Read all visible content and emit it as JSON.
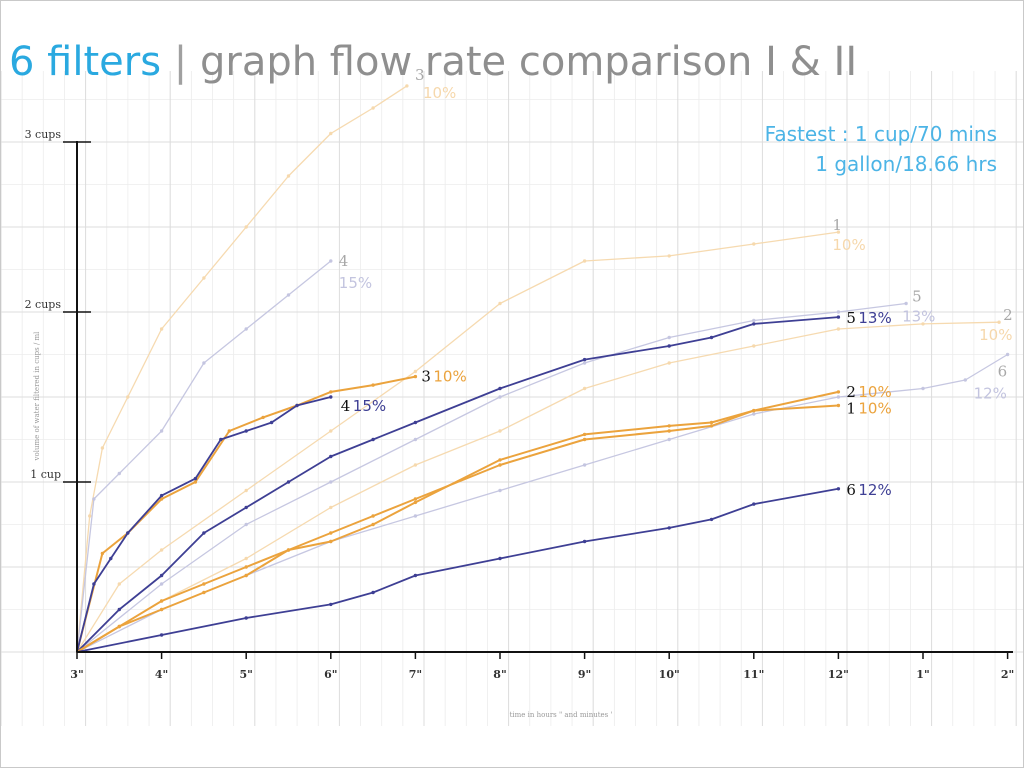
{
  "slide": {
    "title_accent": "6 filters",
    "title_separator": "|",
    "title_rest": "graph flow rate comparison I & II",
    "note_line1": "Fastest : 1 cup/70 mins",
    "note_line2": "1 gallon/18.66 hrs",
    "colors": {
      "accent": "#2aa9e0",
      "title_gray": "#8f8f8f",
      "note_blue": "#4cb4e6",
      "navy": "#3e3f94",
      "orange": "#eba33d",
      "light_lavender": "#c3c4df",
      "light_peach": "#f6d8ac"
    }
  },
  "chart_data": {
    "type": "line",
    "xlabel": "time in hours \" and minutes '",
    "ylabel": "volume of water filtered in cups / ml",
    "x_ticks": [
      "3\"",
      "4\"",
      "5\"",
      "6\"",
      "7\"",
      "8\"",
      "9\"",
      "10\"",
      "11\"",
      "12\"",
      "1\"",
      "2\""
    ],
    "y_ticks": [
      {
        "label": "1 cup",
        "value": 1
      },
      {
        "label": "2 cups",
        "value": 2
      },
      {
        "label": "3 cups",
        "value": 3
      }
    ],
    "xlim": [
      3,
      14
    ],
    "ylim": [
      0,
      3.5
    ],
    "grid": true,
    "series": [
      {
        "group": "I",
        "style": "light-peach",
        "color": "#f6d8ac",
        "label_num": "3",
        "label_pct": "10%",
        "points": [
          [
            3,
            0
          ],
          [
            3.15,
            0.8
          ],
          [
            3.3,
            1.2
          ],
          [
            3.6,
            1.5
          ],
          [
            4,
            1.9
          ],
          [
            4.5,
            2.2
          ],
          [
            5,
            2.5
          ],
          [
            5.5,
            2.8
          ],
          [
            6,
            3.05
          ],
          [
            6.5,
            3.2
          ],
          [
            6.9,
            3.33
          ]
        ]
      },
      {
        "group": "I",
        "style": "light-lavender",
        "color": "#c3c4df",
        "label_num": "4",
        "label_pct": "15%",
        "points": [
          [
            3,
            0
          ],
          [
            3.2,
            0.9
          ],
          [
            3.5,
            1.05
          ],
          [
            4,
            1.3
          ],
          [
            4.5,
            1.7
          ],
          [
            5,
            1.9
          ],
          [
            5.5,
            2.1
          ],
          [
            6,
            2.3
          ]
        ]
      },
      {
        "group": "I",
        "style": "light-peach",
        "color": "#f6d8ac",
        "label_num": "1",
        "label_pct": "10%",
        "points": [
          [
            3,
            0
          ],
          [
            3.5,
            0.4
          ],
          [
            4,
            0.6
          ],
          [
            5,
            0.95
          ],
          [
            6,
            1.3
          ],
          [
            7,
            1.65
          ],
          [
            8,
            2.05
          ],
          [
            9,
            2.3
          ],
          [
            10,
            2.33
          ],
          [
            11,
            2.4
          ],
          [
            12,
            2.47
          ]
        ]
      },
      {
        "group": "I",
        "style": "light-lavender",
        "color": "#c3c4df",
        "label_num": "5",
        "label_pct": "13%",
        "points": [
          [
            3,
            0
          ],
          [
            4,
            0.4
          ],
          [
            5,
            0.75
          ],
          [
            6,
            1.0
          ],
          [
            7,
            1.25
          ],
          [
            8,
            1.5
          ],
          [
            9,
            1.7
          ],
          [
            10,
            1.85
          ],
          [
            11,
            1.95
          ],
          [
            12,
            2.0
          ],
          [
            12.8,
            2.05
          ]
        ]
      },
      {
        "group": "I",
        "style": "light-peach",
        "color": "#f6d8ac",
        "label_num": "2",
        "label_pct": "10%",
        "points": [
          [
            3,
            0
          ],
          [
            4,
            0.3
          ],
          [
            5,
            0.55
          ],
          [
            6,
            0.85
          ],
          [
            7,
            1.1
          ],
          [
            8,
            1.3
          ],
          [
            9,
            1.55
          ],
          [
            10,
            1.7
          ],
          [
            11,
            1.8
          ],
          [
            12,
            1.9
          ],
          [
            13,
            1.93
          ],
          [
            13.9,
            1.94
          ]
        ]
      },
      {
        "group": "I",
        "style": "light-lavender",
        "color": "#c3c4df",
        "label_num": "6",
        "label_pct": "12%",
        "points": [
          [
            3,
            0
          ],
          [
            4,
            0.25
          ],
          [
            5,
            0.45
          ],
          [
            6,
            0.65
          ],
          [
            7,
            0.8
          ],
          [
            8,
            0.95
          ],
          [
            9,
            1.1
          ],
          [
            10,
            1.25
          ],
          [
            11,
            1.4
          ],
          [
            12,
            1.5
          ],
          [
            13,
            1.55
          ],
          [
            13.5,
            1.6
          ],
          [
            14,
            1.75
          ]
        ]
      },
      {
        "group": "II",
        "style": "orange",
        "color": "#eba33d",
        "label_num": "3",
        "label_pct": "10%",
        "points": [
          [
            3,
            0
          ],
          [
            3.3,
            0.58
          ],
          [
            3.6,
            0.7
          ],
          [
            4,
            0.9
          ],
          [
            4.4,
            1.0
          ],
          [
            4.8,
            1.3
          ],
          [
            5.2,
            1.38
          ],
          [
            5.6,
            1.45
          ],
          [
            6,
            1.53
          ],
          [
            6.5,
            1.57
          ],
          [
            7,
            1.62
          ]
        ]
      },
      {
        "group": "II",
        "style": "navy",
        "color": "#3e3f94",
        "label_num": "4",
        "label_pct": "15%",
        "points": [
          [
            3,
            0
          ],
          [
            3.2,
            0.4
          ],
          [
            3.4,
            0.55
          ],
          [
            3.6,
            0.7
          ],
          [
            4,
            0.92
          ],
          [
            4.4,
            1.02
          ],
          [
            4.7,
            1.25
          ],
          [
            5,
            1.3
          ],
          [
            5.3,
            1.35
          ],
          [
            5.6,
            1.45
          ],
          [
            6,
            1.5
          ]
        ]
      },
      {
        "group": "II",
        "style": "navy",
        "color": "#3e3f94",
        "label_num": "5",
        "label_pct": "13%",
        "points": [
          [
            3,
            0
          ],
          [
            3.5,
            0.25
          ],
          [
            4,
            0.45
          ],
          [
            4.5,
            0.7
          ],
          [
            5,
            0.85
          ],
          [
            5.5,
            1.0
          ],
          [
            6,
            1.15
          ],
          [
            6.5,
            1.25
          ],
          [
            7,
            1.35
          ],
          [
            8,
            1.55
          ],
          [
            9,
            1.72
          ],
          [
            10,
            1.8
          ],
          [
            10.5,
            1.85
          ],
          [
            11,
            1.93
          ],
          [
            12,
            1.97
          ]
        ]
      },
      {
        "group": "II",
        "style": "orange",
        "color": "#eba33d",
        "label_num": "2",
        "label_pct": "10%",
        "points": [
          [
            3,
            0
          ],
          [
            3.5,
            0.15
          ],
          [
            4,
            0.3
          ],
          [
            4.5,
            0.4
          ],
          [
            5,
            0.5
          ],
          [
            5.5,
            0.6
          ],
          [
            6,
            0.7
          ],
          [
            6.5,
            0.8
          ],
          [
            7,
            0.9
          ],
          [
            8,
            1.1
          ],
          [
            9,
            1.25
          ],
          [
            10,
            1.3
          ],
          [
            10.5,
            1.33
          ],
          [
            11,
            1.42
          ],
          [
            12,
            1.53
          ]
        ]
      },
      {
        "group": "II",
        "style": "orange",
        "color": "#eba33d",
        "label_num": "1",
        "label_pct": "10%",
        "points": [
          [
            3,
            0
          ],
          [
            3.5,
            0.15
          ],
          [
            4,
            0.25
          ],
          [
            4.5,
            0.35
          ],
          [
            5,
            0.45
          ],
          [
            5.5,
            0.6
          ],
          [
            6,
            0.65
          ],
          [
            6.5,
            0.75
          ],
          [
            7,
            0.88
          ],
          [
            8,
            1.13
          ],
          [
            9,
            1.28
          ],
          [
            10,
            1.33
          ],
          [
            10.5,
            1.35
          ],
          [
            11,
            1.42
          ],
          [
            12,
            1.45
          ]
        ]
      },
      {
        "group": "II",
        "style": "navy",
        "color": "#3e3f94",
        "label_num": "6",
        "label_pct": "12%",
        "points": [
          [
            3,
            0
          ],
          [
            4,
            0.1
          ],
          [
            5,
            0.2
          ],
          [
            6,
            0.28
          ],
          [
            6.5,
            0.35
          ],
          [
            7,
            0.45
          ],
          [
            8,
            0.55
          ],
          [
            9,
            0.65
          ],
          [
            10,
            0.73
          ],
          [
            10.5,
            0.78
          ],
          [
            11,
            0.87
          ],
          [
            12,
            0.96
          ]
        ]
      }
    ]
  }
}
